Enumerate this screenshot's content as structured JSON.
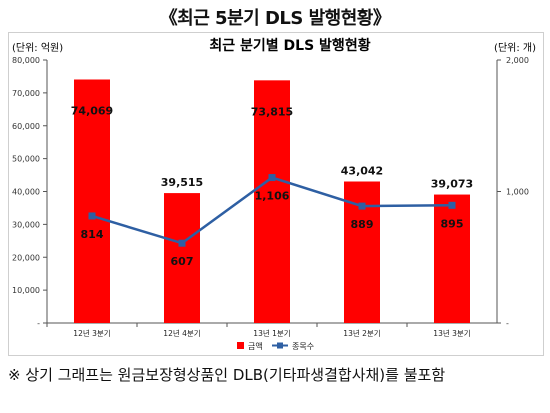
{
  "page": {
    "title": "《최근 5분기 DLS 발행현황》",
    "footnote": "※ 상기 그래프는 원금보장형상품인 DLB(기타파생결합사채)를 불포함"
  },
  "chart_data": {
    "type": "bar",
    "title": "최근 분기별 DLS 발행현황",
    "left_unit": "(단위: 억원)",
    "right_unit": "(단위: 개)",
    "categories": [
      "12년 3분기",
      "12년 4분기",
      "13년 1분기",
      "13년 2분기",
      "13년 3분기"
    ],
    "series": [
      {
        "name": "금액",
        "kind": "bar",
        "axis": "left",
        "color": "#ff0000",
        "values": [
          74069,
          39515,
          73815,
          43042,
          39073
        ],
        "labels": [
          "74,069",
          "39,515",
          "73,815",
          "43,042",
          "39,073"
        ]
      },
      {
        "name": "종목수",
        "kind": "line",
        "axis": "right",
        "color": "#2e5fa3",
        "values": [
          814,
          607,
          1106,
          889,
          895
        ],
        "labels": [
          "814",
          "607",
          "1,106",
          "889",
          "895"
        ]
      }
    ],
    "left_axis": {
      "ylim": [
        0,
        80000
      ],
      "ticks": [
        "-",
        "10,000",
        "20,000",
        "30,000",
        "40,000",
        "50,000",
        "60,000",
        "70,000",
        "80,000"
      ]
    },
    "right_axis": {
      "ylim": [
        0,
        2000
      ],
      "ticks": [
        "-",
        "1,000",
        "2,000"
      ]
    },
    "grid": false,
    "legend_position": "bottom"
  }
}
